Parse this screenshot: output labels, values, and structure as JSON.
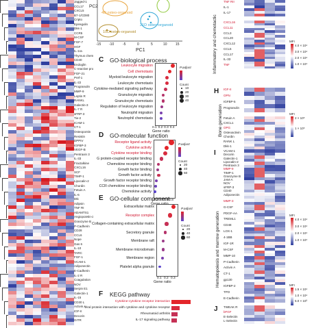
{
  "pca": {
    "xlabel": "PC1",
    "ylabel": "PC2",
    "xticks": [
      "-15",
      "-10",
      "-5",
      "0",
      "5",
      "10",
      "15"
    ],
    "groups": [
      "21D osteo-organoid",
      "10D osteo-organoid",
      "4D osteo-organoid"
    ],
    "colors": [
      "#2ea6d6",
      "#b28c2a",
      "#e8a33a",
      "#8fc83a"
    ]
  },
  "heatmap_left": {
    "row_labels": [
      "Jagged-1",
      "CCL17",
      "CXCL5",
      "B7-1/CD80",
      "Cripto",
      "Epiregulin",
      "Dkk-1",
      "CCR5",
      "M-CSF",
      "FGF-7",
      "HGF",
      "IL-1ra",
      "Thymus chemokine",
      "CD40",
      "Endoglin",
      "C-reactive protein",
      "FGF-21",
      "Pref-1",
      "IL-22",
      "Progranulin",
      "MMP-9",
      "Leptin R",
      "RANKL",
      "Galectin-3",
      "IL-7 R",
      "sFRP-3",
      "Tie-2",
      "ICAM-1",
      "CT-1",
      "Osteopontin",
      "Resistin",
      "DPPIV",
      "IGFBP-3",
      "VEGF-B",
      "Pentraxin 3",
      "IL-33",
      "Fractalkine",
      "CXCL16",
      "SCF",
      "TIMP-1",
      "Lipocalin-2",
      "Chordin",
      "Fetuin A",
      "IL-6",
      "Dtk",
      "Adipsin",
      "TNF RI",
      "ADAMTS1",
      "Angiopoietin-2",
      "Granzyme B",
      "P-Cadherin",
      "CD28",
      "CCL6",
      "Nope",
      "Gas 6",
      "IL-10",
      "TARC",
      "FGF-1",
      "VCAM-1",
      "Adiponectin",
      "E-Cadherin",
      "IL-2 R",
      "Coagulation",
      "NOV",
      "Serpin E1",
      "Galectin-1",
      "IL-15",
      "CD30 L",
      "Activin A",
      "IGF-II",
      "Decorin",
      "GITR"
    ]
  },
  "heatmap_top": {
    "section_label": "Inflammatory and chemotactic",
    "labels_top": [
      "TNF RII",
      "IL-1",
      "IL-17"
    ],
    "labels_mid": [
      "CXCL16",
      "CCL11",
      "CCL3",
      "CCL20",
      "CXCL12",
      "CCL5",
      "CCL17",
      "IL-33",
      "TNF"
    ]
  },
  "heatmap_bone": {
    "panel": "H",
    "section_label": "Bone generation",
    "labels_top": [
      "IGF-II",
      "OPN",
      "IGFBP-5",
      "Progranulin"
    ],
    "labels_mid": [
      "Fetuin A",
      "CXCL1",
      "OPG",
      "Osteoactivin",
      "Chordin",
      "RANK L",
      "Dkk-1"
    ]
  },
  "heatmap_marrow": {
    "panel": "I",
    "section_label": "Hematopoiesis and marrow generation",
    "labels_top": [
      "VCAM-1",
      "Decorin",
      "Galectin-1",
      "Lipocalin-2",
      "Pentraxin 3",
      "MMP-9",
      "TIMP-1",
      "Granzyme B",
      "JAM-A",
      "NOV",
      "sFRP-3",
      "CD40"
    ],
    "labels_mid": [
      "Adiponectin",
      "MMP-3",
      "G-CSF",
      "PDGF-AA",
      "TREML1",
      "CD48",
      "LOX-1",
      "4-1BB",
      "IGF-1R",
      "M-CSF",
      "MMP-10",
      "P-Cadherin",
      "Activin A",
      "CT-1",
      "gp130",
      "IGFBP-2",
      "TPO",
      "E-Cadherin"
    ]
  },
  "heatmap_bottom": {
    "panel": "J",
    "labels": [
      "TWEAK R",
      "bFGF",
      "E-Selectin",
      "L-Selectin"
    ]
  },
  "mfi_legend": {
    "title": "MFI",
    "ticks_a": [
      "4.0 × 10⁴",
      "3.0 × 10⁴",
      "2.0 × 10⁴",
      "1.0 × 10⁴"
    ],
    "ticks_b": [
      "2 × 10⁵",
      "1 × 10⁵"
    ],
    "ticks_c": [
      "4.0 × 10⁴",
      "3.0 × 10⁴",
      "2.0 × 10⁴",
      "1.0 × 10⁴"
    ],
    "ticks_d": [
      "1.5 × 10⁴",
      "1.0 × 10⁴",
      "5.0 × 10³"
    ]
  },
  "go_bp": {
    "panel": "C",
    "title": "GO-biological process",
    "xlabel": "Gene ratio",
    "legend_padj": "P.adjust",
    "legend_count": "Count",
    "count_values": [
      "10",
      "20",
      "30",
      "40"
    ],
    "chart_data": {
      "type": "scatter",
      "categories": [
        "Leukocyte migration",
        "Cell chemotaxis",
        "Myeloid leukocyte migration",
        "Leukocyte chemotaxis",
        "Cytokine-mediated signaling pathway",
        "Granulocyte migration",
        "Granulocyte chemotaxis",
        "Regulation of leukocyte migration",
        "Neutrophil migration",
        "Neutrophil chemotaxis"
      ],
      "highlight": [
        true,
        true,
        false,
        false,
        false,
        false,
        false,
        false,
        false,
        false
      ],
      "x": [
        0.4,
        0.35,
        0.3,
        0.3,
        0.28,
        0.24,
        0.24,
        0.22,
        0.2,
        0.2
      ],
      "size": [
        40,
        35,
        28,
        28,
        30,
        22,
        22,
        20,
        18,
        18
      ],
      "padj_color": [
        "#e3252a",
        "#e3252a",
        "#d82c3f",
        "#d82c3f",
        "#c63055",
        "#b5336a",
        "#b5336a",
        "#9a3a88",
        "#7a3fae",
        "#6b42bd"
      ],
      "xticks": [
        "0.1",
        "0.2",
        "0.3",
        "0.4"
      ],
      "xlim": [
        0.1,
        0.45
      ]
    }
  },
  "go_mf": {
    "panel": "D",
    "title": "GO-molecular function",
    "xlabel": "Gene ratio",
    "legend_padj": "P.adjust",
    "legend_count": "Count",
    "count_values": [
      "20",
      "40",
      "60"
    ],
    "chart_data": {
      "type": "scatter",
      "categories": [
        "Receptor ligand activity",
        "Cytokine activity",
        "Cytokine receptor binding",
        "G protein-coupled receptor binding",
        "Chemokine receptor binding",
        "Growth factor binding",
        "Growth factor activity",
        "Growth factor receptor binding",
        "CCR chemokine receptor binding",
        "Chemokine activity"
      ],
      "highlight": [
        true,
        true,
        true,
        false,
        false,
        false,
        false,
        false,
        false,
        false
      ],
      "x": [
        0.8,
        0.6,
        0.55,
        0.4,
        0.28,
        0.25,
        0.3,
        0.2,
        0.18,
        0.15
      ],
      "size": [
        60,
        45,
        40,
        30,
        20,
        18,
        22,
        16,
        14,
        12
      ],
      "padj_color": [
        "#e3252a",
        "#e3252a",
        "#d82c3f",
        "#c63055",
        "#b5336a",
        "#9a3a88",
        "#c63055",
        "#7a3fae",
        "#6b42bd",
        "#5b45cc"
      ],
      "xticks": [
        "0.2",
        "0.4",
        "0.6",
        "0.8"
      ],
      "xlim": [
        0.1,
        0.9
      ]
    }
  },
  "go_cc": {
    "panel": "E",
    "title": "GO-cellular component",
    "xlabel": "Gene ratio",
    "legend_padj": "P.adjust",
    "legend_count": "Count",
    "count_values": [
      "20",
      "40",
      "60"
    ],
    "chart_data": {
      "type": "scatter",
      "categories": [
        "Extracellular matrix",
        "Receptor complex",
        "Collagen-containing extracellular matrix",
        "Secretory granule",
        "Membrane raft",
        "Membrane microdomain",
        "Membrane region",
        "Platelet alpha granule"
      ],
      "highlight": [
        false,
        true,
        false,
        false,
        false,
        false,
        false,
        false
      ],
      "x": [
        0.3,
        0.25,
        0.2,
        0.18,
        0.15,
        0.15,
        0.14,
        0.1
      ],
      "size": [
        50,
        40,
        32,
        28,
        22,
        22,
        20,
        14
      ],
      "padj_color": [
        "#e3252a",
        "#d82c3f",
        "#c63055",
        "#b5336a",
        "#9a3a88",
        "#9a3a88",
        "#7a3fae",
        "#5b45cc"
      ],
      "xticks": [
        "0.1",
        "0.2",
        "0.3"
      ],
      "xlim": [
        0.05,
        0.35
      ]
    }
  },
  "kegg": {
    "panel": "F",
    "title": "KEGG pathway",
    "chart_data": {
      "type": "bar",
      "categories": [
        "Cytokine-cytokine receptor interaction",
        "Viral protein interaction with cytokine and cytokine receptor",
        "Rheumatoid arthritis",
        "IL-17 signaling pathway"
      ],
      "highlight": [
        true,
        false,
        false,
        false
      ],
      "values": [
        60,
        25,
        20,
        18
      ],
      "colors": [
        "#e3252a",
        "#d82c3f",
        "#c63055",
        "#c63055"
      ]
    }
  }
}
